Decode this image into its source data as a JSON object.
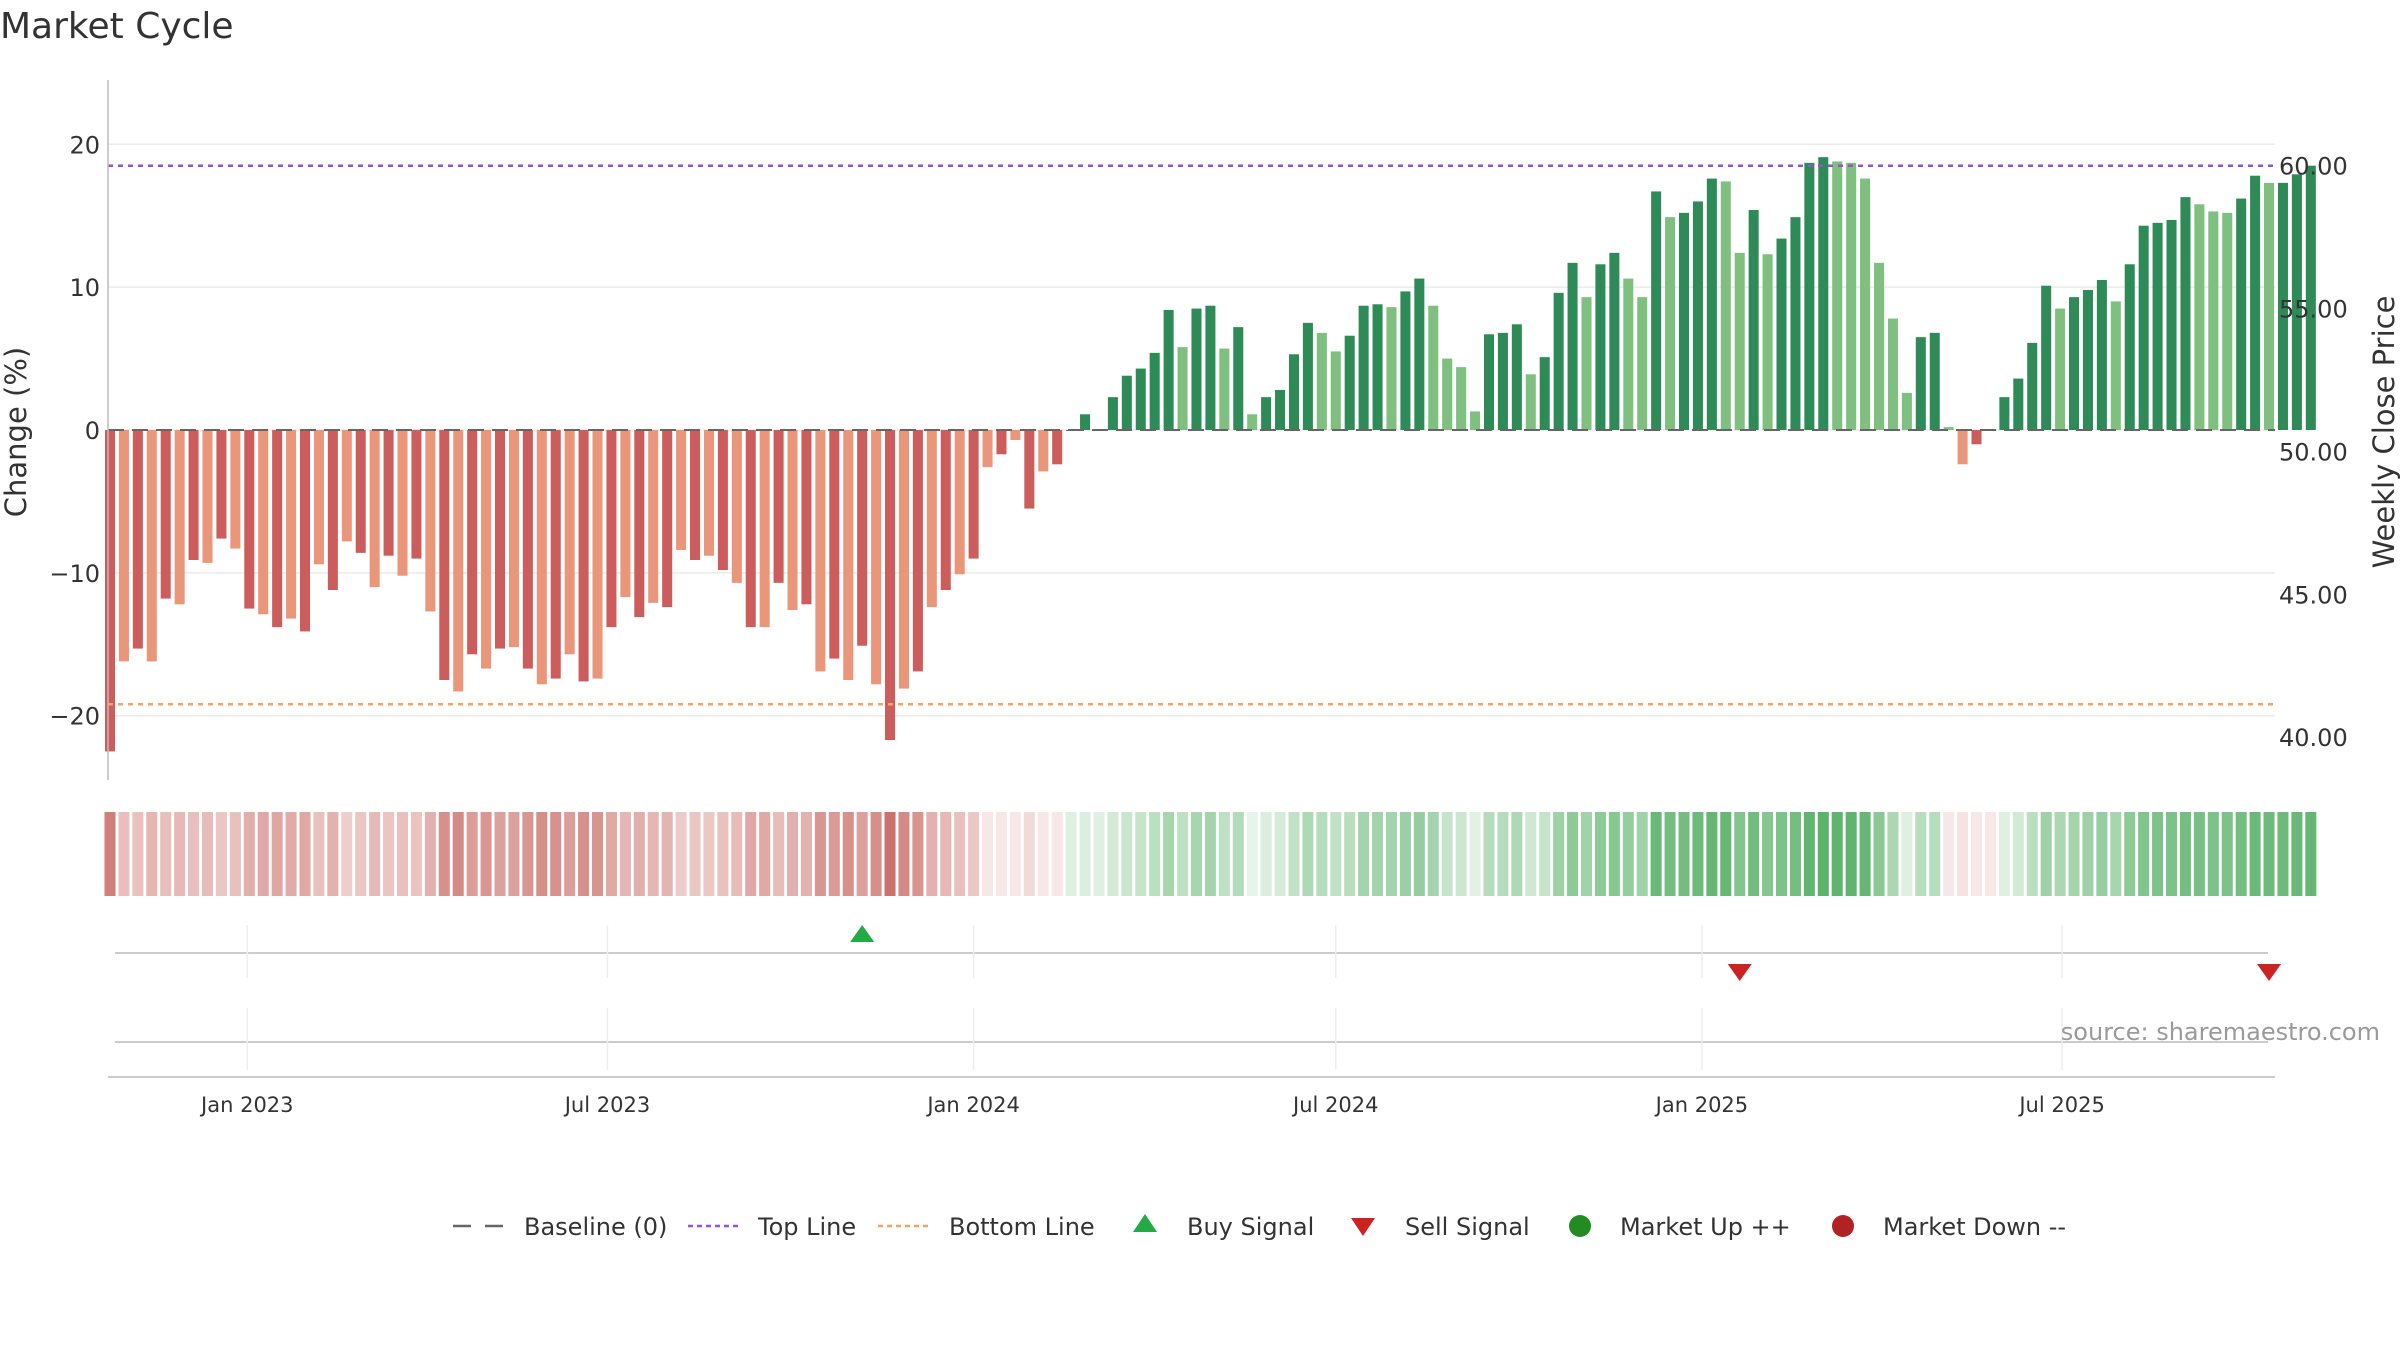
{
  "chart_data": {
    "type": "bar",
    "title": "Market Cycle",
    "ylabel": "Change (%)",
    "y2label": "Weekly Close Price",
    "ylim": [
      -24.5,
      24.5
    ],
    "yticks": [
      {
        "v": 20,
        "label": "20"
      },
      {
        "v": 10,
        "label": "10"
      },
      {
        "v": 0,
        "label": "0"
      },
      {
        "v": -10,
        "label": "−10"
      },
      {
        "v": -20,
        "label": "−20"
      }
    ],
    "y2lim": [
      38.5,
      63.0
    ],
    "y2ticks": [
      {
        "v": 60,
        "label": "60.00"
      },
      {
        "v": 55,
        "label": "55.00"
      },
      {
        "v": 50,
        "label": "50.00"
      },
      {
        "v": 45,
        "label": "45.00"
      },
      {
        "v": 40,
        "label": "40.00"
      }
    ],
    "xlim": [
      "2022-10-23",
      "2025-10-16"
    ],
    "xticks": [
      {
        "date": "2023-01-01",
        "label": "Jan 2023"
      },
      {
        "date": "2023-07-01",
        "label": "Jul 2023"
      },
      {
        "date": "2024-01-01",
        "label": "Jan 2024"
      },
      {
        "date": "2024-07-01",
        "label": "Jul 2024"
      },
      {
        "date": "2025-01-01",
        "label": "Jan 2025"
      },
      {
        "date": "2025-07-01",
        "label": "Jul 2025"
      }
    ],
    "top_line": 18.5,
    "bottom_line": -19.2,
    "series": [
      {
        "start_date": "2022-10-24",
        "interval_days": 7,
        "values": [
          -22.5,
          -16.2,
          -15.3,
          -16.2,
          -11.8,
          -12.2,
          -9.1,
          -9.3,
          -7.6,
          -8.3,
          -12.5,
          -12.9,
          -13.8,
          -13.2,
          -14.1,
          -9.4,
          -11.2,
          -7.8,
          -8.6,
          -11,
          -8.8,
          -10.2,
          -9,
          -12.7,
          -17.5,
          -18.3,
          -15.7,
          -16.7,
          -15.3,
          -15.2,
          -16.7,
          -17.8,
          -17.4,
          -15.7,
          -17.6,
          -17.4,
          -13.8,
          -11.7,
          -13.1,
          -12.1,
          -12.4,
          -8.4,
          -9.1,
          -8.8,
          -9.8,
          -10.7,
          -13.8,
          -13.8,
          -10.7,
          -12.6,
          -12.2,
          -16.9,
          -16,
          -17.5,
          -15.1,
          -17.8,
          -21.7,
          -18.1,
          -16.9,
          -12.4,
          -11.2,
          -10.1,
          -9,
          -2.6,
          -1.7,
          -0.7,
          -5.5,
          -2.9,
          -2.4,
          0,
          1.1,
          0,
          2.3,
          3.8,
          4.3,
          5.4,
          8.4,
          5.8,
          8.5,
          8.7,
          5.7,
          7.2,
          1.1,
          2.3,
          2.8,
          5.3,
          7.5,
          6.8,
          5.5,
          6.6,
          8.7,
          8.8,
          8.6,
          9.7,
          10.6,
          8.7,
          5,
          4.4,
          1.3,
          6.7,
          6.8,
          7.4,
          3.9,
          5.1,
          9.6,
          11.7,
          9.3,
          11.6,
          12.4,
          10.6,
          9.3,
          16.7,
          14.9,
          15.2,
          16,
          17.6,
          17.4,
          12.4,
          15.4,
          12.3,
          13.4,
          14.9,
          18.7,
          19.1,
          18.8,
          18.7,
          17.6,
          11.7,
          7.8,
          2.6,
          6.5,
          6.8,
          0.2,
          -2.4,
          -1,
          0,
          2.3,
          3.6,
          6.1,
          10.1,
          8.5,
          9.3,
          9.8,
          10.5,
          9,
          11.6,
          14.3,
          14.5,
          14.7,
          16.3,
          15.8,
          15.3,
          15.2,
          16.2,
          17.8,
          17.3,
          17.3,
          17.9,
          18.5
        ]
      }
    ],
    "heat_strip": [
      0.84,
      0.42,
      0.4,
      0.48,
      0.42,
      0.46,
      0.42,
      0.44,
      0.37,
      0.41,
      0.53,
      0.56,
      0.58,
      0.54,
      0.57,
      0.4,
      0.5,
      0.32,
      0.37,
      0.45,
      0.38,
      0.41,
      0.39,
      0.51,
      0.72,
      0.76,
      0.64,
      0.68,
      0.61,
      0.61,
      0.69,
      0.74,
      0.71,
      0.63,
      0.72,
      0.7,
      0.56,
      0.47,
      0.53,
      0.48,
      0.49,
      0.34,
      0.37,
      0.36,
      0.4,
      0.44,
      0.57,
      0.56,
      0.44,
      0.51,
      0.5,
      0.69,
      0.66,
      0.72,
      0.62,
      0.73,
      0.92,
      0.76,
      0.7,
      0.5,
      0.46,
      0.41,
      0.36,
      0.14,
      0.1,
      0.08,
      0.24,
      0.12,
      0.1,
      0.2,
      0.22,
      0.2,
      0.28,
      0.33,
      0.36,
      0.42,
      0.55,
      0.4,
      0.55,
      0.57,
      0.4,
      0.48,
      0.15,
      0.22,
      0.25,
      0.38,
      0.5,
      0.46,
      0.38,
      0.44,
      0.56,
      0.57,
      0.56,
      0.62,
      0.66,
      0.56,
      0.35,
      0.32,
      0.18,
      0.46,
      0.46,
      0.5,
      0.3,
      0.36,
      0.6,
      0.7,
      0.58,
      0.7,
      0.74,
      0.66,
      0.58,
      0.92,
      0.86,
      0.87,
      0.9,
      0.95,
      0.94,
      0.76,
      0.88,
      0.75,
      0.8,
      0.86,
      0.98,
      1,
      0.99,
      0.98,
      0.95,
      0.72,
      0.52,
      0.2,
      0.44,
      0.45,
      0.14,
      0.18,
      0.12,
      0.15,
      0.2,
      0.28,
      0.42,
      0.6,
      0.52,
      0.57,
      0.6,
      0.64,
      0.55,
      0.7,
      0.78,
      0.8,
      0.8,
      0.86,
      0.83,
      0.8,
      0.8,
      0.85,
      0.92,
      0.9,
      0.9,
      0.92,
      0.95
    ],
    "signals": [
      {
        "type": "buy",
        "date": "2023-11-06"
      },
      {
        "type": "sell",
        "date": "2025-01-20"
      },
      {
        "type": "sell",
        "date": "2025-10-13"
      }
    ],
    "legend": [
      {
        "key": "baseline",
        "label": "Baseline (0)"
      },
      {
        "key": "top",
        "label": "Top Line"
      },
      {
        "key": "bottom",
        "label": "Bottom Line"
      },
      {
        "key": "buy",
        "label": "Buy Signal"
      },
      {
        "key": "sell",
        "label": "Sell Signal"
      },
      {
        "key": "up",
        "label": "Market Up ++"
      },
      {
        "key": "down",
        "label": "Market Down --"
      }
    ],
    "legend_position": "bottom-center",
    "grid": true,
    "source": "source: sharemaestro.com",
    "colors": {
      "pos_dark": "#2e8b57",
      "pos_light": "#7fbf7f",
      "neg_dark": "#cd5c5c",
      "neg_light": "#e9967a",
      "top_line": "#9a4fd6",
      "bottom_line": "#f4a460",
      "baseline": "#666666",
      "buy": "#22aa44",
      "sell": "#cc2222",
      "up": "#228b22",
      "down": "#b22222",
      "strip_pos": "#5db36c",
      "strip_neg": "#c8665f"
    }
  }
}
